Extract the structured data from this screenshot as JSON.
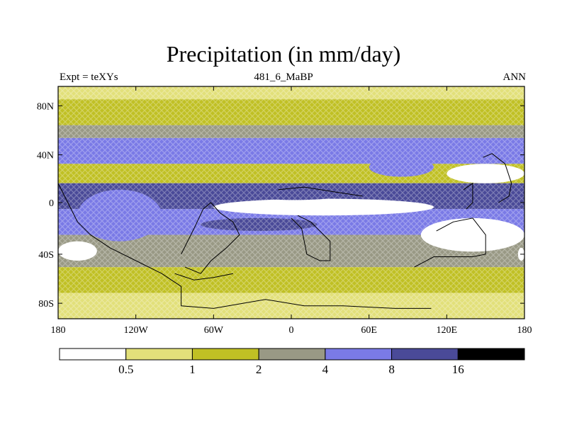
{
  "title": "Precipitation (in mm/day)",
  "subtitle_left": "Expt = teXYs",
  "subtitle_center": "481_6_MaBP",
  "subtitle_right": "ANN",
  "chart_data": {
    "type": "heatmap",
    "title": "Precipitation (in mm/day)",
    "x_ticks": [
      "180",
      "120W",
      "60W",
      "0",
      "60E",
      "120E",
      "180"
    ],
    "y_ticks": [
      "80N",
      "40N",
      "0",
      "40S",
      "80S"
    ],
    "lon_range": [
      -180,
      180
    ],
    "lat_range": [
      -90,
      90
    ],
    "colorbar": {
      "levels": [
        "0.5",
        "1",
        "2",
        "4",
        "8",
        "16"
      ],
      "colors": [
        "#ffffff",
        "#e2e07a",
        "#c0c024",
        "#999985",
        "#7a7ae6",
        "#4a4a98",
        "#000000"
      ]
    },
    "bands": [
      {
        "lat_from": 90,
        "lat_to": 80,
        "level": 1
      },
      {
        "lat_from": 80,
        "lat_to": 60,
        "level": 2
      },
      {
        "lat_from": 60,
        "lat_to": 50,
        "level": 3
      },
      {
        "lat_from": 50,
        "lat_to": 30,
        "level": 4
      },
      {
        "lat_from": 30,
        "lat_to": 15,
        "level": 2
      },
      {
        "lat_from": 15,
        "lat_to": -5,
        "level": 5
      },
      {
        "lat_from": -5,
        "lat_to": -25,
        "level": 4
      },
      {
        "lat_from": -25,
        "lat_to": -50,
        "level": 3
      },
      {
        "lat_from": -50,
        "lat_to": -70,
        "level": 2
      },
      {
        "lat_from": -70,
        "lat_to": -90,
        "level": 1
      }
    ],
    "features": [
      {
        "lon_from": -60,
        "lon_to": 110,
        "lat_from": 3,
        "lat_to": -10,
        "level": 0
      },
      {
        "lon_from": 100,
        "lon_to": 180,
        "lat_from": -12,
        "lat_to": -38,
        "level": 0
      },
      {
        "lon_from": 120,
        "lon_to": 180,
        "lat_from": 30,
        "lat_to": 15,
        "level": 0
      },
      {
        "lon_from": -180,
        "lon_to": -140,
        "lat_from": 10,
        "lat_to": -5,
        "level": 5
      },
      {
        "lon_from": -35,
        "lon_to": 40,
        "lat_from": 10,
        "lat_to": 2,
        "level": 5
      },
      {
        "lon_from": 30,
        "lon_to": 100,
        "lat_from": 12,
        "lat_to": 5,
        "level": 5
      },
      {
        "lon_from": 130,
        "lon_to": 175,
        "lat_from": 8,
        "lat_to": -3,
        "level": 5
      },
      {
        "lon_from": -70,
        "lon_to": 20,
        "lat_from": -12,
        "lat_to": -22,
        "level": 5
      },
      {
        "lon_from": -180,
        "lon_to": -150,
        "lat_from": -30,
        "lat_to": -45,
        "level": 0
      },
      {
        "lon_from": 175,
        "lon_to": 180,
        "lat_from": -35,
        "lat_to": -45,
        "level": 0
      },
      {
        "lon_from": -165,
        "lon_to": -100,
        "lat_from": 10,
        "lat_to": -30,
        "level": 4
      },
      {
        "lon_from": 60,
        "lon_to": 110,
        "lat_from": 35,
        "lat_to": 20,
        "level": 4
      }
    ],
    "coastlines": [
      [
        [
          -180,
          15
        ],
        [
          -175,
          5
        ],
        [
          -170,
          -5
        ],
        [
          -165,
          -15
        ],
        [
          -155,
          -25
        ],
        [
          -140,
          -35
        ],
        [
          -120,
          -45
        ],
        [
          -100,
          -55
        ],
        [
          -85,
          -65
        ],
        [
          -85,
          -80
        ],
        [
          -60,
          -82
        ],
        [
          -20,
          -75
        ],
        [
          10,
          -80
        ],
        [
          40,
          -80
        ],
        [
          80,
          -82
        ],
        [
          108,
          -82
        ]
      ],
      [
        [
          -85,
          -40
        ],
        [
          -75,
          -20
        ],
        [
          -68,
          -5
        ],
        [
          -62,
          0
        ],
        [
          -55,
          -8
        ],
        [
          -45,
          -15
        ],
        [
          -40,
          -25
        ],
        [
          -50,
          -35
        ],
        [
          -62,
          -45
        ],
        [
          -70,
          -55
        ],
        [
          -82,
          -50
        ]
      ],
      [
        [
          0,
          -12
        ],
        [
          8,
          -20
        ],
        [
          12,
          -40
        ],
        [
          22,
          -45
        ],
        [
          30,
          -45
        ],
        [
          30,
          -30
        ],
        [
          15,
          -15
        ],
        [
          5,
          -10
        ]
      ],
      [
        [
          -10,
          10
        ],
        [
          10,
          12
        ],
        [
          35,
          8
        ],
        [
          55,
          5
        ]
      ],
      [
        [
          95,
          -50
        ],
        [
          110,
          -42
        ],
        [
          140,
          -42
        ],
        [
          150,
          -40
        ],
        [
          150,
          -25
        ],
        [
          140,
          -12
        ],
        [
          125,
          -15
        ],
        [
          112,
          -22
        ]
      ],
      [
        [
          133,
          10
        ],
        [
          140,
          15
        ],
        [
          140,
          0
        ],
        [
          135,
          -5
        ]
      ],
      [
        [
          148,
          35
        ],
        [
          155,
          38
        ],
        [
          165,
          30
        ],
        [
          170,
          15
        ],
        [
          168,
          5
        ],
        [
          160,
          0
        ]
      ],
      [
        [
          -90,
          -55
        ],
        [
          -75,
          -60
        ],
        [
          -60,
          -58
        ],
        [
          -45,
          -55
        ]
      ]
    ]
  }
}
